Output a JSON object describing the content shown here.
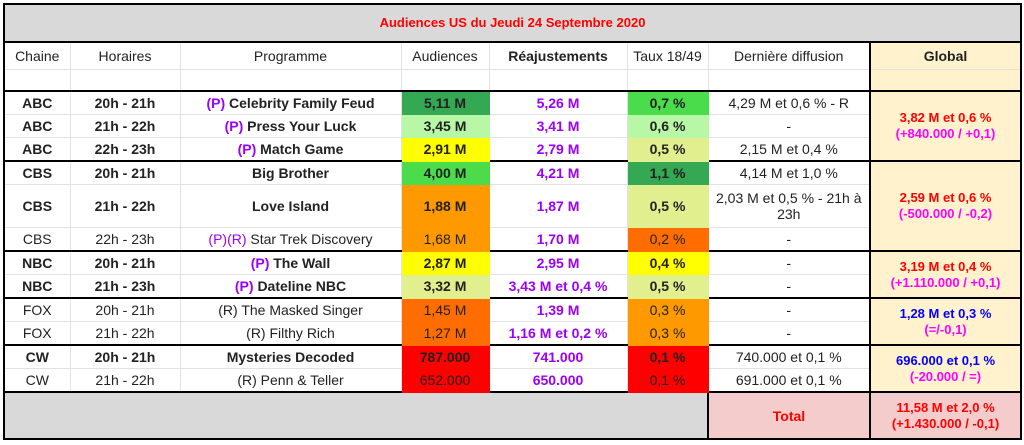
{
  "title": "Audiences US du Jeudi 24 Septembre 2020",
  "headers": {
    "chaine": "Chaine",
    "horaires": "Horaires",
    "programme": "Programme",
    "audiences": "Audiences",
    "reajustements": "Réajustements",
    "taux": "Taux 18/49",
    "derniere": "Dernière diffusion",
    "global": "Global"
  },
  "rows": [
    {
      "chaine": "ABC",
      "horaires": "20h - 21h",
      "prefix": "(P)",
      "programme": "Celebrity Family Feud",
      "audiences": "5,11 M",
      "aud_color": "#34a853",
      "reaj": "5,26 M",
      "taux": "0,7 %",
      "taux_color": "#4bdc4b",
      "derniere": "4,29 M et 0,6 % - R",
      "bold": true
    },
    {
      "chaine": "ABC",
      "horaires": "21h - 22h",
      "prefix": "(P)",
      "programme": "Press Your Luck",
      "audiences": "3,45 M",
      "aud_color": "#b7f7a5",
      "reaj": "3,41 M",
      "taux": "0,6 %",
      "taux_color": "#b7f7a5",
      "derniere": "-",
      "bold": true
    },
    {
      "chaine": "ABC",
      "horaires": "22h - 23h",
      "prefix": "(P)",
      "programme": "Match Game",
      "audiences": "2,91 M",
      "aud_color": "#ffff00",
      "reaj": "2,79 M",
      "taux": "0,5 %",
      "taux_color": "#e1ef8f",
      "derniere": "2,15 M et 0,4 %",
      "bold": true
    },
    {
      "chaine": "CBS",
      "horaires": "20h - 21h",
      "prefix": "",
      "programme": "Big Brother",
      "audiences": "4,00 M",
      "aud_color": "#4bdc4b",
      "reaj": "4,21 M",
      "taux": "1,1 %",
      "taux_color": "#34a853",
      "derniere": "4,14 M et 1,0 %",
      "bold": true
    },
    {
      "chaine": "CBS",
      "horaires": "21h - 22h",
      "prefix": "",
      "programme": "Love Island",
      "audiences": "1,88 M",
      "aud_color": "#ff9900",
      "reaj": "1,87 M",
      "taux": "0,5 %",
      "taux_color": "#e1ef8f",
      "derniere": "2,03 M et 0,5 % - 21h à 23h",
      "bold": true
    },
    {
      "chaine": "CBS",
      "horaires": "22h - 23h",
      "prefix": "(P)(R)",
      "programme": "Star Trek Discovery",
      "audiences": "1,68 M",
      "aud_color": "#ff9900",
      "reaj": "1,70 M",
      "taux": "0,2 %",
      "taux_color": "#ff6d01",
      "derniere": "-",
      "bold": false
    },
    {
      "chaine": "NBC",
      "horaires": "20h - 21h",
      "prefix": "(P)",
      "programme": "The Wall",
      "audiences": "2,87 M",
      "aud_color": "#ffff00",
      "reaj": "2,95 M",
      "taux": "0,4 %",
      "taux_color": "#ffff00",
      "derniere": "-",
      "bold": true
    },
    {
      "chaine": "NBC",
      "horaires": "21h - 23h",
      "prefix": "(P)",
      "programme": "Dateline NBC",
      "audiences": "3,32 M",
      "aud_color": "#e1ef8f",
      "reaj": "3,43 M et 0,4 %",
      "taux": "0,5 %",
      "taux_color": "#e1ef8f",
      "derniere": "-",
      "bold": true
    },
    {
      "chaine": "FOX",
      "horaires": "20h - 21h",
      "prefix": "",
      "programme": "(R) The Masked Singer",
      "audiences": "1,45 M",
      "aud_color": "#ff6d01",
      "reaj": "1,39 M",
      "taux": "0,3 %",
      "taux_color": "#ff9900",
      "derniere": "-",
      "bold": false
    },
    {
      "chaine": "FOX",
      "horaires": "21h - 22h",
      "prefix": "",
      "programme": "(R) Filthy Rich",
      "audiences": "1,27 M",
      "aud_color": "#ff6d01",
      "reaj": "1,16 M et 0,2 %",
      "taux": "0,3 %",
      "taux_color": "#ff9900",
      "derniere": "-",
      "bold": false
    },
    {
      "chaine": "CW",
      "horaires": "20h - 21h",
      "prefix": "",
      "programme": "Mysteries Decoded",
      "audiences": "787.000",
      "aud_color": "#ff0000",
      "reaj": "741.000",
      "taux": "0,1 %",
      "taux_color": "#ff0000",
      "derniere": "740.000 et 0,1 %",
      "bold": true
    },
    {
      "chaine": "CW",
      "horaires": "21h - 22h",
      "prefix": "",
      "programme": "(R) Penn & Teller",
      "audiences": "652.000",
      "aud_color": "#ff0000",
      "reaj": "650.000",
      "taux": "0,1 %",
      "taux_color": "#ff0000",
      "derniere": "691.000 et 0,1 %",
      "bold": false
    }
  ],
  "globals": {
    "abc": {
      "main": "3,82 M et 0,6 %",
      "delta": "(+840.000 / +0,1)"
    },
    "cbs": {
      "main": "2,59 M et 0,6 %",
      "delta": "(-500.000 / -0,2)"
    },
    "nbc": {
      "main": "3,19 M et 0,4 %",
      "delta": "(+1.110.000 / +0,1)"
    },
    "fox": {
      "main": "1,28 M et 0,3 %",
      "delta": "(=/-0,1)"
    },
    "cw": {
      "main": "696.000 et 0,1 %",
      "delta": "(-20.000 / =)"
    }
  },
  "footer": {
    "total_label": "Total",
    "total_main": "11,58 M et 2,0 %",
    "total_delta": "(+1.430.000 / -0,1)"
  },
  "colors": {
    "title_red": "#ff0000",
    "reaj_purple": "#9900ff",
    "global_bg": "#fff2cc",
    "total_bg": "#f4cccc",
    "header_grey": "#d9d9d9",
    "blue": "#0000ff",
    "magenta": "#ff00ff"
  }
}
